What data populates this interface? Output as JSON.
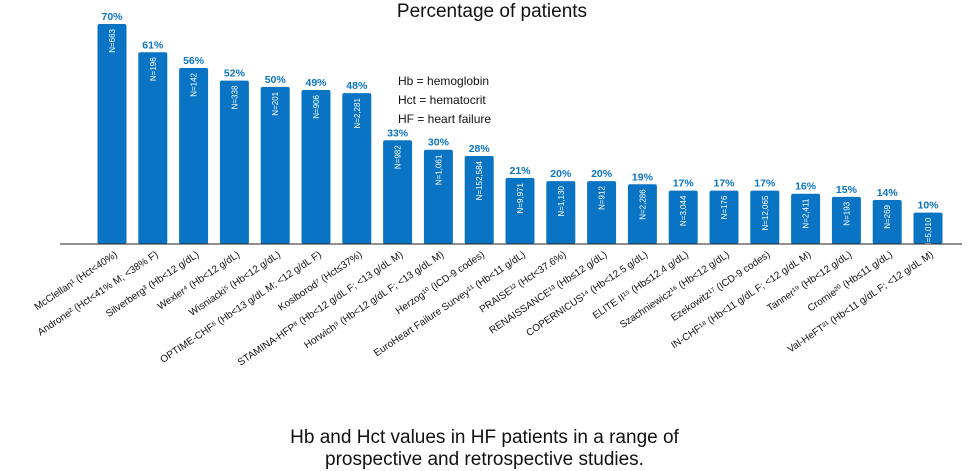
{
  "chart_data": {
    "type": "bar",
    "title": "Percentage of patients",
    "ylim": [
      0,
      70
    ],
    "grid": false,
    "legend": {
      "placement": "top-center",
      "lines": [
        "Hb = hemoglobin",
        "Hct = hematocrit",
        "HF = heart failure"
      ]
    },
    "categories": [
      "McClellan¹ (Hct<40%)",
      "Androne² (Hct<41% M; <38% F)",
      "Silverberg³ (Hb<12 g/dL)",
      "Wexler⁴ (Hb<12 g/dL)",
      "Wisniacki⁵ (Hb<12 g/dL)",
      "OPTIME-CHF⁶ (Hb<13 g/dL M; <12 g/dL F)",
      "Kosiborod⁷ (Hct≤37%)",
      "STAMINA-HFP⁸ (Hb<12 g/dL F; <13 g/dL M)",
      "Horwich⁹ (Hb<12 g/dL F; <13 g/dL M)",
      "Herzog¹⁰ (ICD-9 codes)",
      "EuroHeart Failure Survey¹¹ (Hb<11 g/dL)",
      "PRAISE¹² (Hct<37.6%)",
      "RENAISSANCE¹³ (Hb≤12 g/dL)",
      "COPERNICUS¹⁴ (Hb<12.5 g/dL)",
      "ELITE II¹⁵ (Hb≤12.4 g/dL)",
      "Szachniewicz¹⁶ (Hb<12 g/dL)",
      "Ezekowitz¹⁷ (ICD-9 codes)",
      "IN-CHF¹⁸ (Hb<11 g/dL F; <12 g/dL M)",
      "Tanner¹⁹ (Hb<12 g/dL)",
      "Cromie²⁰ (Hb≤11 g/dL)",
      "Val-HeFT²¹ (Hb<11 g/dL F; <12 g/dL M)"
    ],
    "values": [
      70,
      61,
      56,
      52,
      50,
      49,
      48,
      33,
      30,
      28,
      21,
      20,
      20,
      19,
      17,
      17,
      17,
      16,
      15,
      14,
      10
    ],
    "value_labels": [
      "70%",
      "61%",
      "56%",
      "52%",
      "50%",
      "49%",
      "48%",
      "33%",
      "30%",
      "28%",
      "21%",
      "20%",
      "20%",
      "19%",
      "17%",
      "17%",
      "17%",
      "16%",
      "15%",
      "14%",
      "10%"
    ],
    "n_labels": [
      "N=663",
      "N=196",
      "N=142",
      "N=338",
      "N=201",
      "N=906",
      "N=2,281",
      "N=982",
      "N=1,061",
      "N=152,584",
      "N=9,971",
      "N=1,130",
      "N=912",
      "N=2,286",
      "N=3,044",
      "N=176",
      "N=12,065",
      "N=2,411",
      "N=193",
      "N=269",
      "N=5,010"
    ],
    "bar_color": "#0a74c4"
  },
  "caption": {
    "line1": "Hb and Hct values in HF patients in a range of",
    "line2": "prospective and retrospective studies."
  }
}
